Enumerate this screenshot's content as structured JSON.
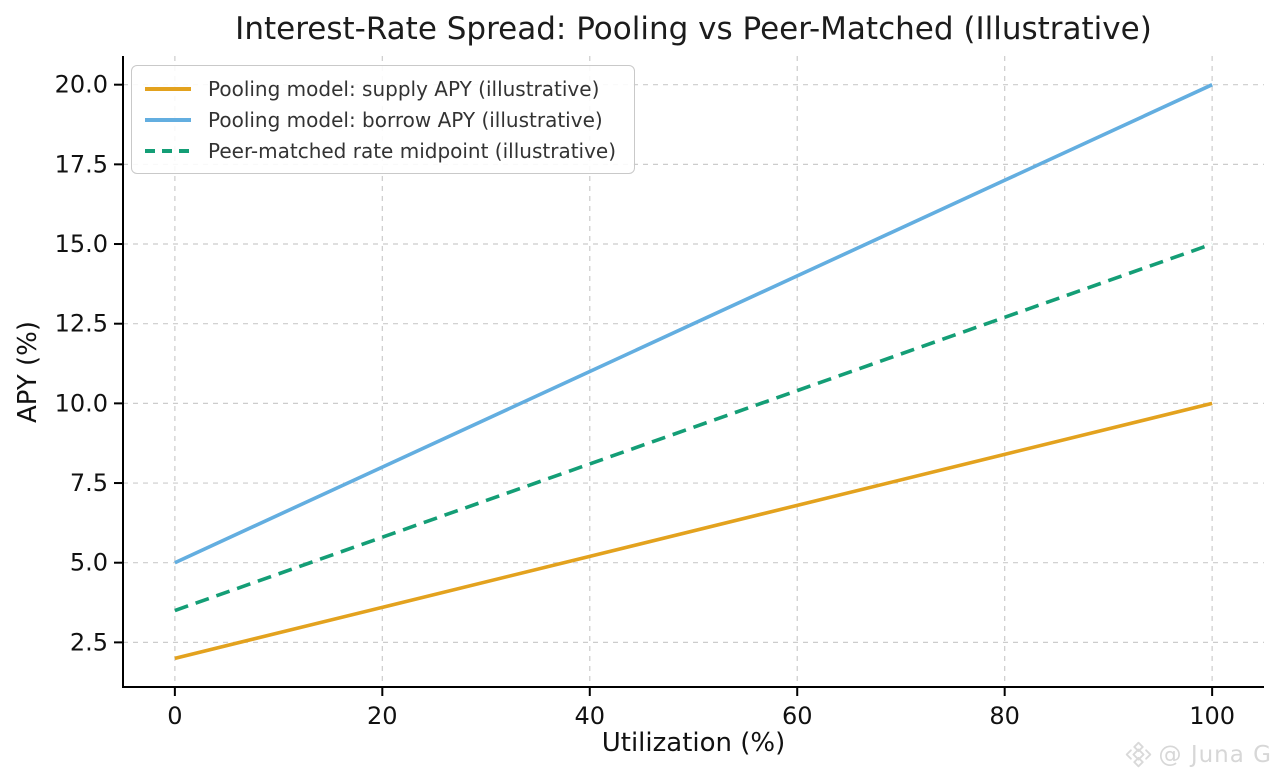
{
  "page": {
    "watermark": {
      "text": "@ Juna G",
      "icon": "binance-diamond-icon"
    }
  },
  "chart_data": {
    "type": "line",
    "title": "Interest-Rate Spread: Pooling vs Peer-Matched (Illustrative)",
    "xlabel": "Utilization (%)",
    "ylabel": "APY (%)",
    "x": [
      0,
      20,
      40,
      60,
      80,
      100
    ],
    "series": [
      {
        "name": "Pooling model: supply APY (illustrative)",
        "color": "#E3A21E",
        "style": "solid",
        "values": [
          2.0,
          3.6,
          5.2,
          6.8,
          8.4,
          10.0
        ]
      },
      {
        "name": "Pooling model: borrow APY (illustrative)",
        "color": "#63AEE0",
        "style": "solid",
        "values": [
          5.0,
          8.0,
          11.0,
          14.0,
          17.0,
          20.0
        ]
      },
      {
        "name": "Peer-matched rate midpoint (illustrative)",
        "color": "#149E76",
        "style": "dashed",
        "values": [
          3.5,
          5.8,
          8.1,
          10.4,
          12.7,
          15.0
        ]
      }
    ],
    "xlim": [
      -5,
      105
    ],
    "ylim": [
      1.1,
      20.9
    ],
    "xticks": {
      "values": [
        0,
        20,
        40,
        60,
        80,
        100
      ],
      "labels": [
        "0",
        "20",
        "40",
        "60",
        "80",
        "100"
      ]
    },
    "yticks": {
      "values": [
        2.5,
        5.0,
        7.5,
        10.0,
        12.5,
        15.0,
        17.5,
        20.0
      ],
      "labels": [
        "2.5",
        "5.0",
        "7.5",
        "10.0",
        "12.5",
        "15.0",
        "17.5",
        "20.0"
      ]
    },
    "grid": true,
    "grid_color": "#cccccc",
    "axis_color": "#000000",
    "legend_position": "upper-left"
  }
}
